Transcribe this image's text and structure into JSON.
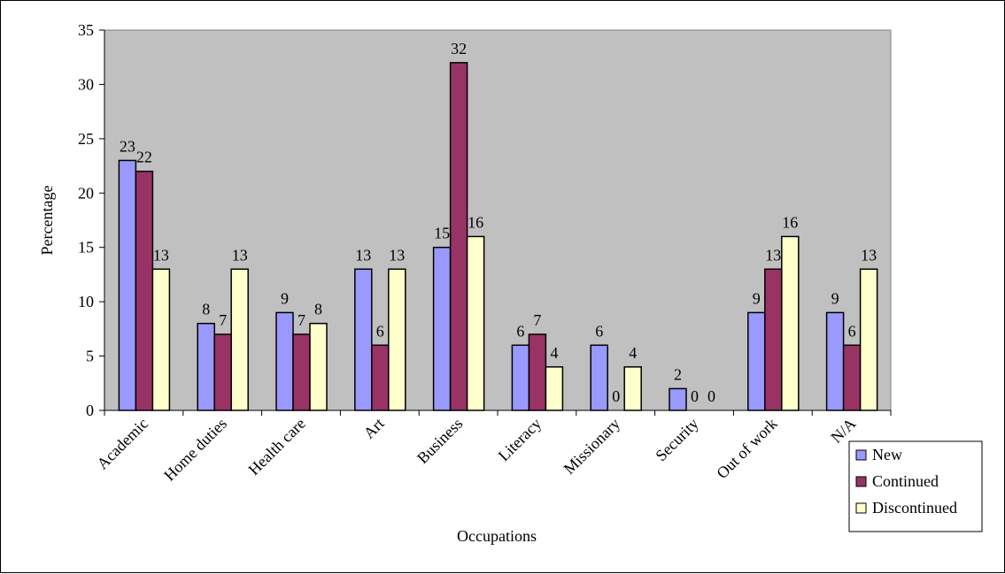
{
  "chart_data": {
    "type": "bar",
    "xlabel": "Occupations",
    "ylabel": "Percentage",
    "ylim": [
      0,
      35
    ],
    "yticks": [
      0,
      5,
      10,
      15,
      20,
      25,
      30,
      35
    ],
    "grid": false,
    "legend_position": "bottom-right",
    "categories": [
      "Academic",
      "Home duties",
      "Health care",
      "Art",
      "Business",
      "Literacy",
      "Missionary",
      "Security",
      "Out of work",
      "N/A"
    ],
    "series": [
      {
        "name": "New",
        "values": [
          23,
          8,
          9,
          13,
          15,
          6,
          6,
          2,
          9,
          9
        ],
        "color": "#9999ff"
      },
      {
        "name": "Continued",
        "values": [
          22,
          7,
          7,
          6,
          32,
          7,
          0,
          0,
          13,
          6
        ],
        "color": "#993366"
      },
      {
        "name": "Discontinued",
        "values": [
          13,
          13,
          8,
          13,
          16,
          4,
          4,
          0,
          16,
          13
        ],
        "color": "#ffffcc"
      }
    ],
    "plot_background": "#c0c0c0"
  }
}
